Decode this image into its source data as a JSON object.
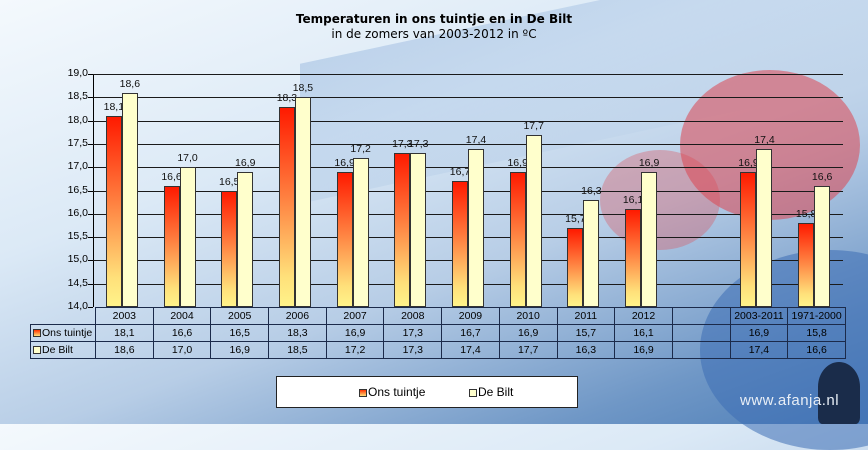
{
  "chart_data": {
    "type": "bar",
    "title": "Temperaturen  in ons tuintje  en in De Bilt",
    "subtitle": "in de zomers van 2003-2012 in ºC",
    "xlabel": "",
    "ylabel": "",
    "ylim": [
      14.0,
      19.0
    ],
    "yticks": [
      "14,0",
      "14,5",
      "15,0",
      "15,5",
      "16,0",
      "16,5",
      "17,0",
      "17,5",
      "18,0",
      "18,5",
      "19,0"
    ],
    "categories": [
      "2003",
      "2004",
      "2005",
      "2006",
      "2007",
      "2008",
      "2009",
      "2010",
      "2011",
      "2012",
      "",
      "2003-2011",
      "1971-2000"
    ],
    "series": [
      {
        "name": "Ons tuintje",
        "color": "#ff3000",
        "values": [
          18.1,
          16.6,
          16.5,
          18.3,
          16.9,
          17.3,
          16.7,
          16.9,
          15.7,
          16.1,
          null,
          16.9,
          15.8
        ],
        "labels": [
          "18,1",
          "16,6",
          "16,5",
          "18,3",
          "16,9",
          "17,3",
          "16,7",
          "16,9",
          "15,7",
          "16,1",
          "",
          "16,9",
          "15,8"
        ]
      },
      {
        "name": "De Bilt",
        "color": "#ffffcc",
        "values": [
          18.6,
          17.0,
          16.9,
          18.5,
          17.2,
          17.3,
          17.4,
          17.7,
          16.3,
          16.9,
          null,
          17.4,
          16.6
        ],
        "labels": [
          "18,6",
          "17,0",
          "16,9",
          "18,5",
          "17,2",
          "17,3",
          "17,4",
          "17,7",
          "16,3",
          "16,9",
          "",
          "17,4",
          "16,6"
        ]
      }
    ],
    "grid": true,
    "legend_position": "bottom",
    "data_table": true
  },
  "legend": {
    "items": [
      "Ons tuintje",
      "De Bilt"
    ]
  },
  "watermark": "www.afanja.nl"
}
